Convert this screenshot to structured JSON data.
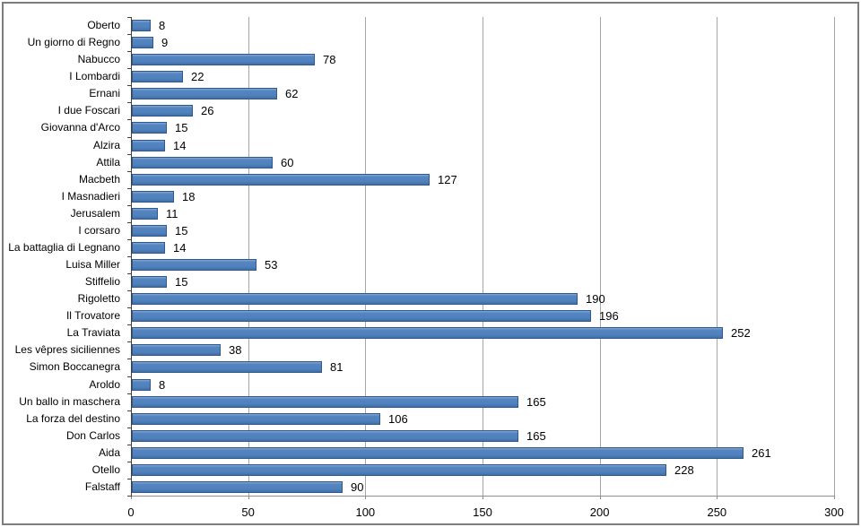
{
  "chart_data": {
    "type": "bar",
    "orientation": "horizontal",
    "title": "",
    "xlabel": "",
    "ylabel": "",
    "categories": [
      "Oberto",
      "Un giorno di Regno",
      "Nabucco",
      "I Lombardi",
      "Ernani",
      "I due Foscari",
      "Giovanna d'Arco",
      "Alzira",
      "Attila",
      "Macbeth",
      "I Masnadieri",
      "Jerusalem",
      "I corsaro",
      "La battaglia di Legnano",
      "Luisa Miller",
      "Stiffelio",
      "Rigoletto",
      "Il Trovatore",
      "La Traviata",
      "Les vêpres siciliennes",
      "Simon Boccanegra",
      "Aroldo",
      "Un ballo in maschera",
      "La forza del destino",
      "Don Carlos",
      "Aida",
      "Otello",
      "Falstaff"
    ],
    "values": [
      8,
      9,
      78,
      22,
      62,
      26,
      15,
      14,
      60,
      127,
      18,
      11,
      15,
      14,
      53,
      15,
      190,
      196,
      252,
      38,
      81,
      8,
      165,
      106,
      165,
      261,
      228,
      90
    ],
    "value_labels_shown": true,
    "xlim": [
      0,
      300
    ],
    "x_tick_values": [
      0,
      50,
      100,
      150,
      200,
      250,
      300
    ],
    "x_tick_labels": [
      "0",
      "50",
      "100",
      "150",
      "200",
      "250",
      "300"
    ],
    "grid": "vertical",
    "legend": "none",
    "colors": {
      "bar_fill": "#4f81bd",
      "bar_border": "#2e598c",
      "gridline": "#a6a6a6",
      "y_axis_line": "#404040",
      "x_axis_line": "#8e8e8e",
      "text": "#000000",
      "frame_border": "#7d7d7d",
      "background": "#ffffff"
    }
  }
}
